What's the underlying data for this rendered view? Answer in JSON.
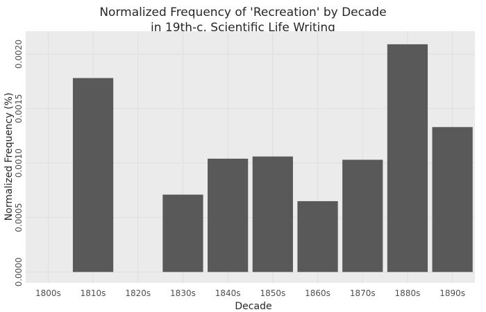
{
  "chart_data": {
    "type": "bar",
    "title_lines": [
      "Normalized Frequency of 'Recreation' by Decade",
      "in 19th-c. Scientific Life Writing"
    ],
    "xlabel": "Decade",
    "ylabel": "Normalized Frequency (%)",
    "categories": [
      "1800s",
      "1810s",
      "1820s",
      "1830s",
      "1840s",
      "1850s",
      "1860s",
      "1870s",
      "1880s",
      "1890s"
    ],
    "values": [
      0,
      0.00178,
      0,
      0.00071,
      0.00104,
      0.00106,
      0.00065,
      0.00103,
      0.00209,
      0.00133
    ],
    "ylim": [
      -0.0001,
      0.00221
    ],
    "yticks": [
      0,
      0.0005,
      0.001,
      0.0015,
      0.002
    ],
    "ytick_labels": [
      "0.0000",
      "0.0005",
      "0.0010",
      "0.0015",
      "0.0020"
    ],
    "grid": true,
    "colors": {
      "panel": "#ebebeb",
      "grid": "#dedede",
      "bar": "#595959"
    }
  }
}
